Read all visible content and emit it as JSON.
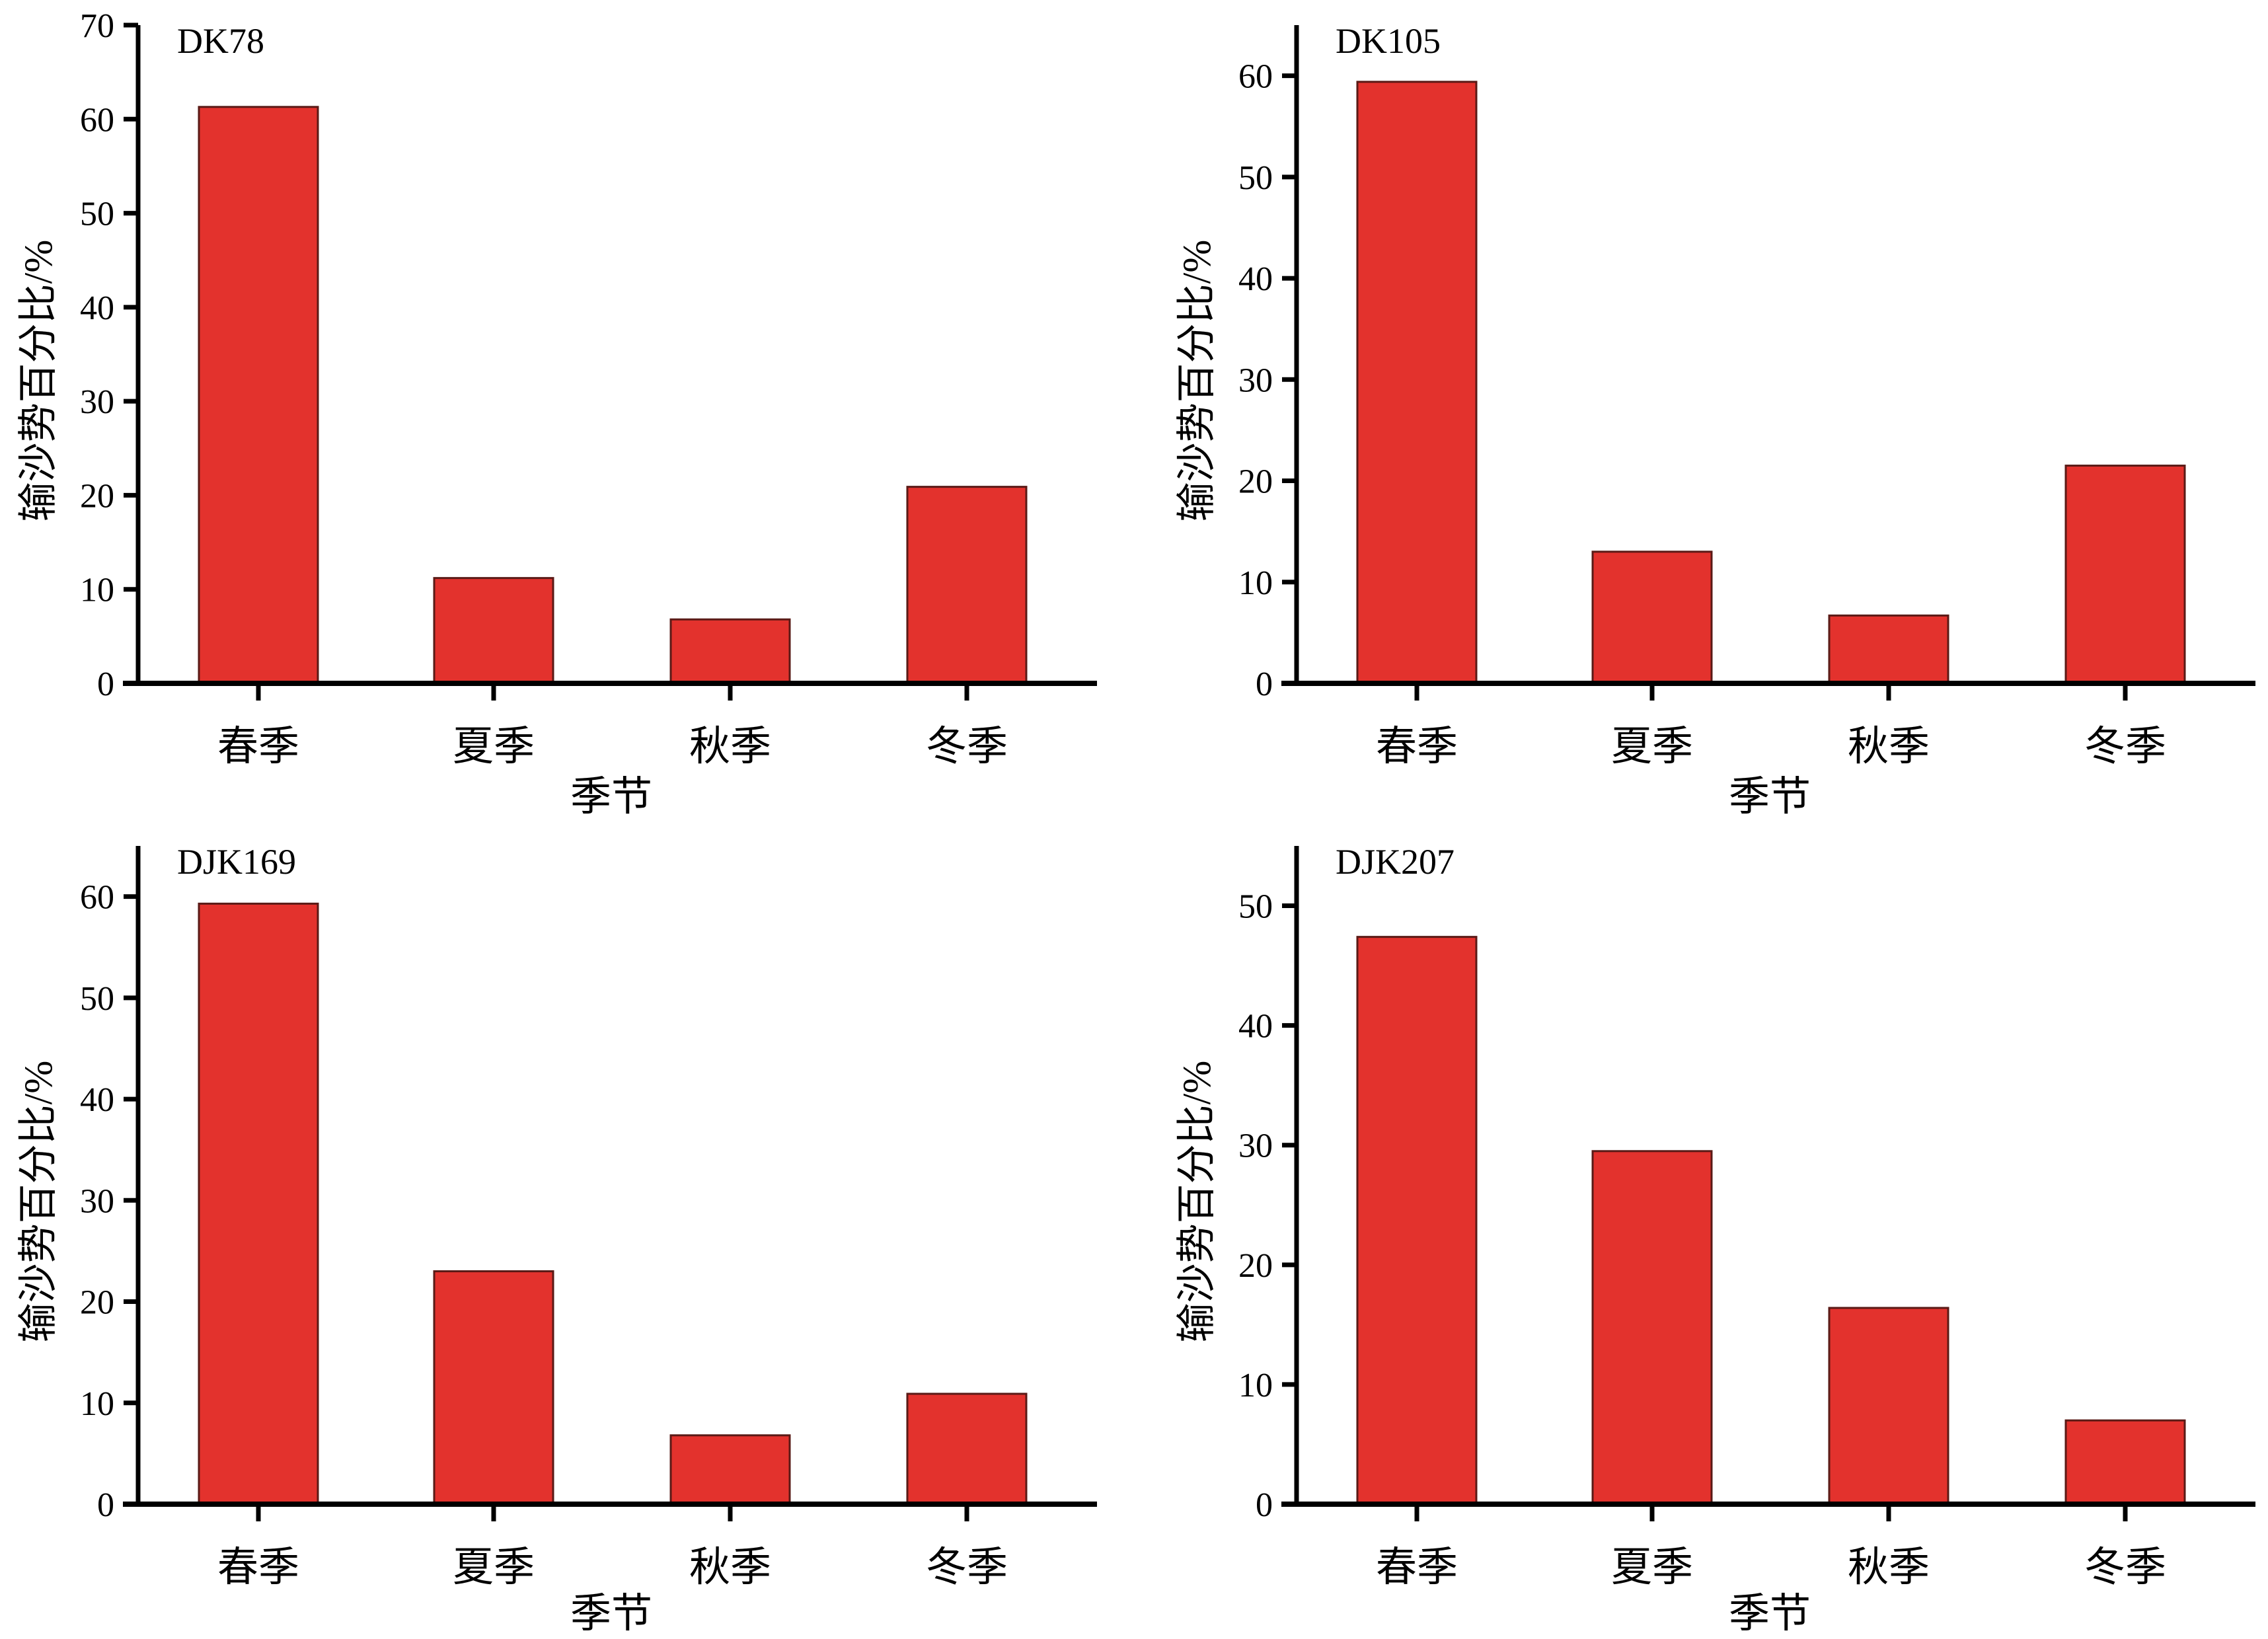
{
  "figure": {
    "bar_color": "#E3322D",
    "bar_edge_color": "#5A1A16",
    "axis_color": "#000000"
  },
  "chart_data": [
    {
      "type": "bar",
      "title": "DK78",
      "categories": [
        "春季",
        "夏季",
        "秋季",
        "冬季"
      ],
      "values": [
        61.3,
        11.2,
        6.8,
        20.9
      ],
      "xlabel": "季节",
      "ylabel": "输沙势百分比/%",
      "ylim": [
        0,
        70
      ],
      "yticks": [
        0,
        10,
        20,
        30,
        40,
        50,
        60,
        70
      ],
      "ytick_labels": [
        "0",
        "10",
        "20",
        "30",
        "40",
        "50",
        "60",
        "70"
      ],
      "grid": false,
      "legend": "none"
    },
    {
      "type": "bar",
      "title": "DK105",
      "categories": [
        "春季",
        "夏季",
        "秋季",
        "冬季"
      ],
      "values": [
        59.4,
        13.0,
        6.7,
        21.5
      ],
      "xlabel": "季节",
      "ylabel": "输沙势百分比/%",
      "ylim": [
        0,
        65
      ],
      "yticks": [
        0,
        10,
        20,
        30,
        40,
        50,
        60
      ],
      "ytick_labels": [
        "0",
        "10",
        "20",
        "30",
        "40",
        "50",
        "60"
      ],
      "grid": false,
      "legend": "none"
    },
    {
      "type": "bar",
      "title": "DJK169",
      "categories": [
        "春季",
        "夏季",
        "秋季",
        "冬季"
      ],
      "values": [
        59.3,
        23.0,
        6.8,
        10.9
      ],
      "xlabel": "季节",
      "ylabel": "输沙势百分比/%",
      "ylim": [
        0,
        65
      ],
      "yticks": [
        0,
        10,
        20,
        30,
        40,
        50,
        60
      ],
      "ytick_labels": [
        "0",
        "10",
        "20",
        "30",
        "40",
        "50",
        "60"
      ],
      "grid": false,
      "legend": "none"
    },
    {
      "type": "bar",
      "title": "DJK207",
      "categories": [
        "春季",
        "夏季",
        "秋季",
        "冬季"
      ],
      "values": [
        47.4,
        29.5,
        16.4,
        7.0
      ],
      "xlabel": "季节",
      "ylabel": "输沙势百分比/%",
      "ylim": [
        0,
        55
      ],
      "yticks": [
        0,
        10,
        20,
        30,
        40,
        50
      ],
      "ytick_labels": [
        "0",
        "10",
        "20",
        "30",
        "40",
        "50"
      ],
      "grid": false,
      "legend": "none"
    }
  ]
}
